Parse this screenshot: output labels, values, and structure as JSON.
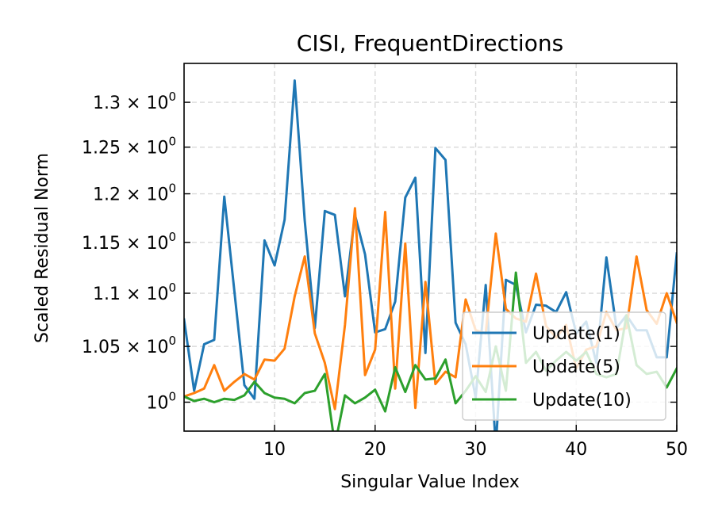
{
  "chart_data": {
    "type": "line",
    "title": "CISI, FrequentDirections",
    "xlabel": "Singular Value Index",
    "ylabel": "Scaled Residual Norm",
    "xlim": [
      1,
      50
    ],
    "ylim": [
      0.975,
      1.345
    ],
    "yscale": "log",
    "grid": true,
    "legend_position": "lower-right",
    "x_ticks": [
      10,
      20,
      30,
      40,
      50
    ],
    "y_ticks": [
      {
        "value": 1.0,
        "mantissa": "",
        "exp": "0"
      },
      {
        "value": 1.05,
        "mantissa": "1.05",
        "exp": "0"
      },
      {
        "value": 1.1,
        "mantissa": "1.1",
        "exp": "0"
      },
      {
        "value": 1.15,
        "mantissa": "1.15",
        "exp": "0"
      },
      {
        "value": 1.2,
        "mantissa": "1.2",
        "exp": "0"
      },
      {
        "value": 1.25,
        "mantissa": "1.25",
        "exp": "0"
      },
      {
        "value": 1.3,
        "mantissa": "1.3",
        "exp": "0"
      }
    ],
    "x": [
      1,
      2,
      3,
      4,
      5,
      6,
      7,
      8,
      9,
      10,
      11,
      12,
      13,
      14,
      15,
      16,
      17,
      18,
      19,
      20,
      21,
      22,
      23,
      24,
      25,
      26,
      27,
      28,
      29,
      30,
      31,
      32,
      33,
      34,
      35,
      36,
      37,
      38,
      39,
      40,
      41,
      42,
      43,
      44,
      45,
      46,
      47,
      48,
      49,
      50
    ],
    "series": [
      {
        "name": "Update(1)",
        "color": "#1f77b4",
        "values": [
          1.075,
          1.01,
          1.052,
          1.056,
          1.197,
          1.102,
          1.015,
          1.003,
          1.152,
          1.127,
          1.173,
          1.325,
          1.172,
          1.067,
          1.182,
          1.178,
          1.097,
          1.178,
          1.138,
          1.063,
          1.066,
          1.092,
          1.196,
          1.217,
          1.044,
          1.249,
          1.236,
          1.072,
          1.052,
          1.004,
          1.108,
          0.962,
          1.113,
          1.108,
          1.063,
          1.089,
          1.088,
          1.082,
          1.101,
          1.062,
          1.073,
          1.035,
          1.135,
          1.067,
          1.079,
          1.065,
          1.065,
          1.04,
          1.04,
          1.139
        ]
      },
      {
        "name": "Update(5)",
        "color": "#ff7f0e",
        "values": [
          1.005,
          1.008,
          1.012,
          1.033,
          1.01,
          1.018,
          1.025,
          1.02,
          1.038,
          1.037,
          1.048,
          1.097,
          1.136,
          1.062,
          1.035,
          0.994,
          1.07,
          1.185,
          1.024,
          1.047,
          1.181,
          1.012,
          1.149,
          0.995,
          1.111,
          1.016,
          1.027,
          1.022,
          1.094,
          1.065,
          1.062,
          1.159,
          1.085,
          1.076,
          1.073,
          1.119,
          1.069,
          1.058,
          1.07,
          1.03,
          1.047,
          1.05,
          1.082,
          1.065,
          1.067,
          1.136,
          1.084,
          1.071,
          1.1,
          1.072
        ]
      },
      {
        "name": "Update(10)",
        "color": "#2ca02c",
        "values": [
          1.005,
          1.001,
          1.003,
          1.0,
          1.003,
          1.002,
          1.006,
          1.018,
          1.008,
          1.004,
          1.003,
          0.999,
          1.008,
          1.01,
          1.025,
          0.963,
          1.006,
          0.999,
          1.004,
          1.011,
          0.992,
          1.031,
          1.009,
          1.033,
          1.02,
          1.021,
          1.038,
          0.999,
          1.01,
          1.023,
          1.009,
          1.05,
          1.01,
          1.12,
          1.035,
          1.045,
          1.028,
          1.037,
          1.045,
          1.037,
          1.045,
          1.025,
          1.022,
          1.025,
          1.079,
          1.033,
          1.025,
          1.027,
          1.013,
          1.03
        ]
      }
    ]
  }
}
